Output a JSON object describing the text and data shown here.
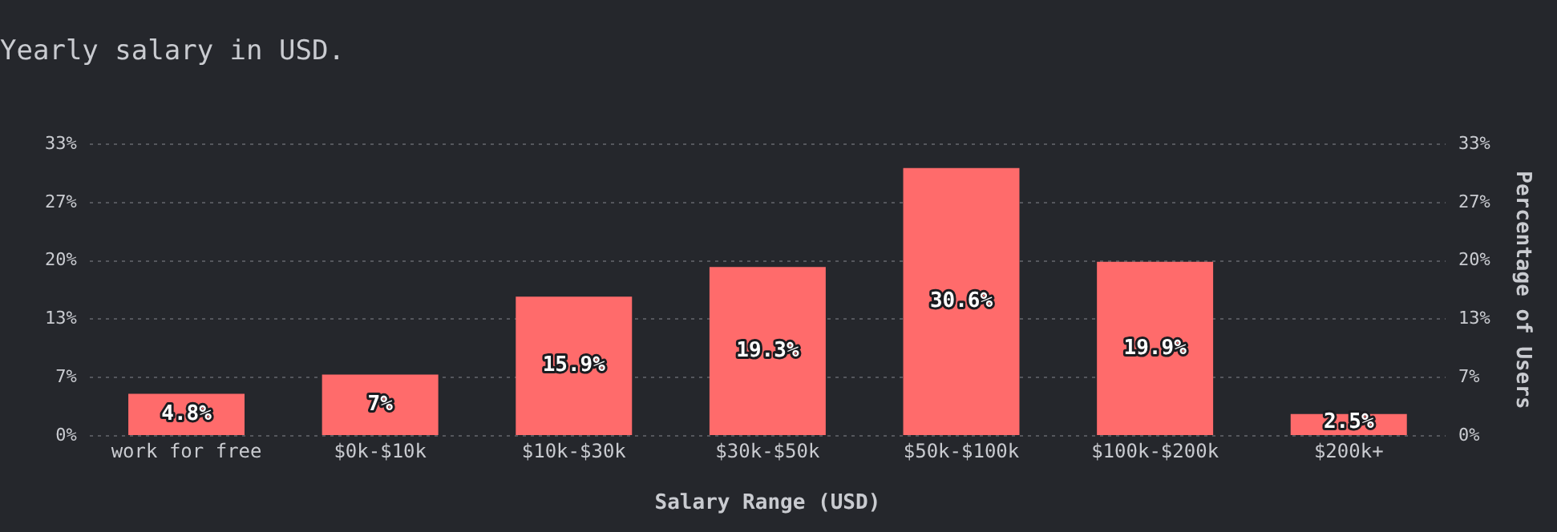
{
  "chart_data": {
    "type": "bar",
    "title": "Yearly salary in USD.",
    "xlabel": "Salary Range (USD)",
    "y2label": "Percentage of Users",
    "categories": [
      "work for free",
      "$0k-$10k",
      "$10k-$30k",
      "$30k-$50k",
      "$50k-$100k",
      "$100k-$200k",
      "$200k+"
    ],
    "values": [
      4.8,
      7,
      15.9,
      19.3,
      30.6,
      19.9,
      2.5
    ],
    "value_labels": [
      "4.8%",
      "7%",
      "15.9%",
      "19.3%",
      "30.6%",
      "19.9%",
      "2.5%"
    ],
    "color": "#ff6b6b",
    "ylim": [
      0,
      33.333
    ],
    "yticks": [
      {
        "value": 0,
        "label": "0%"
      },
      {
        "value": 6.667,
        "label": "7%"
      },
      {
        "value": 13.333,
        "label": "13%"
      },
      {
        "value": 20,
        "label": "20%"
      },
      {
        "value": 26.667,
        "label": "27%"
      },
      {
        "value": 33.333,
        "label": "33%"
      }
    ],
    "y2lim": [
      0,
      33.333
    ],
    "y2ticks": [
      {
        "value": 0,
        "label": "0%"
      },
      {
        "value": 6.667,
        "label": "7%"
      },
      {
        "value": 13.333,
        "label": "13%"
      },
      {
        "value": 20,
        "label": "20%"
      },
      {
        "value": 26.667,
        "label": "27%"
      },
      {
        "value": 33.333,
        "label": "33%"
      }
    ],
    "grid": "y",
    "legend": false
  }
}
